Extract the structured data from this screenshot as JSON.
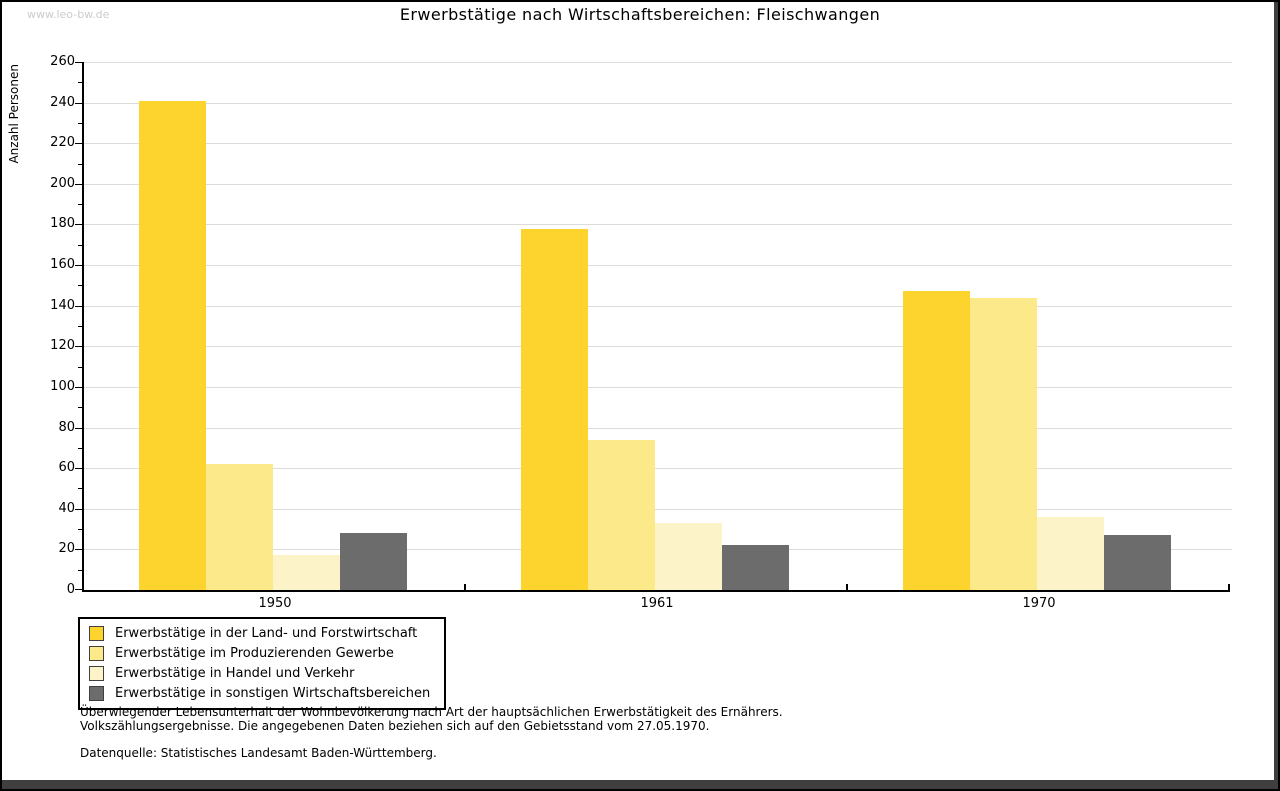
{
  "watermark": "www.leo-bw.de",
  "title": "Erwerbstätige nach Wirtschaftsbereichen: Fleischwangen",
  "chart_data": {
    "type": "bar",
    "title": "Erwerbstätige nach Wirtschaftsbereichen: Fleischwangen",
    "xlabel": "",
    "ylabel": "Anzahl Personen",
    "ylim": [
      0,
      260
    ],
    "ytick_step": 20,
    "y_minor_tick_step": 10,
    "grid": "horizontal",
    "gridline_color": "#dcdcdc",
    "legend_position": "bottom-left",
    "categories": [
      "1950",
      "1961",
      "1970"
    ],
    "series": [
      {
        "name": "Erwerbstätige in der Land- und Forstwirtschaft",
        "color": "#FDD32E",
        "values": [
          241,
          178,
          147
        ]
      },
      {
        "name": "Erwerbstätige im Produzierenden Gewerbe",
        "color": "#FCE98A",
        "values": [
          62,
          74,
          144
        ]
      },
      {
        "name": "Erwerbstätige in Handel und Verkehr",
        "color": "#FCF3C8",
        "values": [
          17,
          33,
          36
        ]
      },
      {
        "name": "Erwerbstätige in sonstigen Wirtschaftsbereichen",
        "color": "#6C6C6C",
        "values": [
          28,
          22,
          27
        ]
      }
    ]
  },
  "footer": {
    "line1": "Überwiegender Lebensunterhalt der Wohnbevölkerung nach Art der hauptsächlichen Erwerbstätigkeit des Ernährers.",
    "line2": "Volkszählungsergebnisse. Die angegebenen Daten beziehen sich auf den Gebietsstand vom 27.05.1970.",
    "source": "Datenquelle: Statistisches Landesamt Baden-Württemberg."
  }
}
